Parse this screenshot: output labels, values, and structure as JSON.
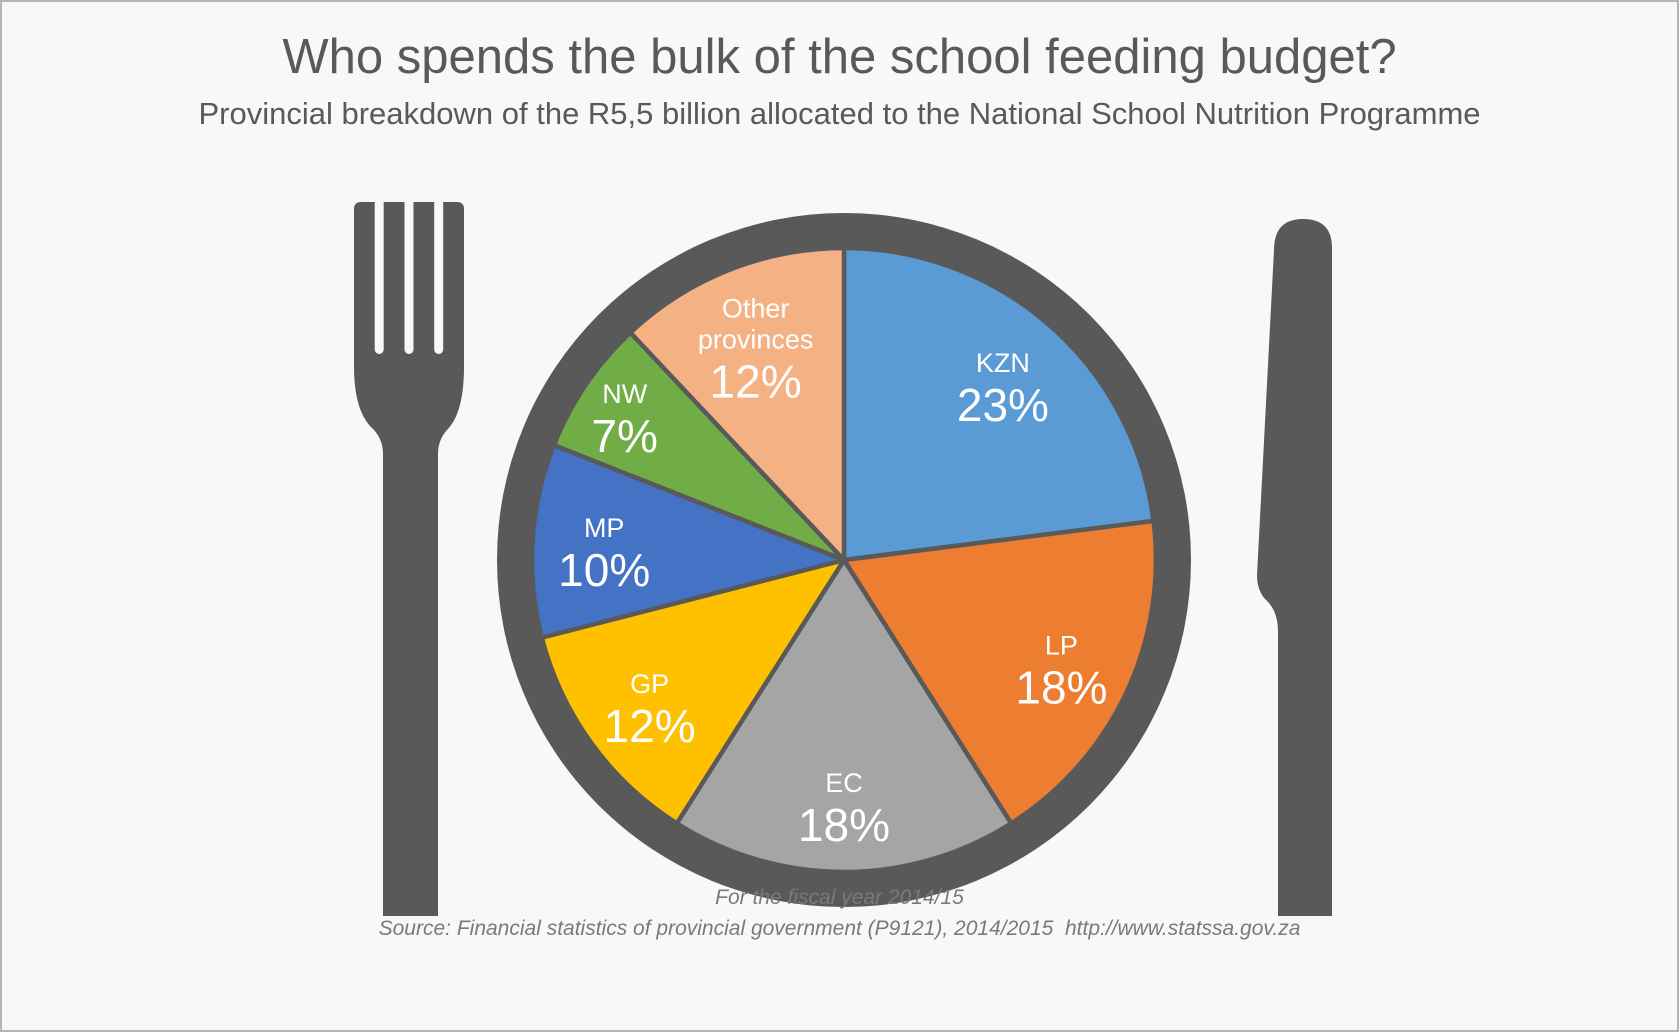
{
  "title": "Who spends the bulk of the school feeding budget?",
  "subtitle": "Provincial breakdown of the R5,5 billion allocated to the National School Nutrition Programme",
  "footer": {
    "line1": "For the fiscal year 2014/15",
    "line2": "Source: Financial statistics of provincial government (P9121), 2014/2015  http://www.statssa.gov.za"
  },
  "colors": {
    "utensil": "#595959",
    "slice_border": "#595959",
    "label_text": "#FFFFFF",
    "title_text": "#595959",
    "footer_text": "#7A7A7A",
    "background": "#F8F8F8",
    "border": "#B5B5B5"
  },
  "chart_data": {
    "type": "pie",
    "title": "Provincial breakdown of the R5,5 billion National School Nutrition Programme budget",
    "period": "Fiscal year 2014/15",
    "unit": "percent",
    "start_angle_deg": 0,
    "direction": "clockwise",
    "slices": [
      {
        "label": "KZN",
        "value": 23,
        "color": "#5B9BD5"
      },
      {
        "label": "LP",
        "value": 18,
        "color": "#ED7D31"
      },
      {
        "label": "EC",
        "value": 18,
        "color": "#A5A5A5"
      },
      {
        "label": "GP",
        "value": 12,
        "color": "#FFC000"
      },
      {
        "label": "MP",
        "value": 10,
        "color": "#4472C4"
      },
      {
        "label": "NW",
        "value": 7,
        "color": "#70AD47"
      },
      {
        "label": "Other provinces",
        "value": 12,
        "color": "#F4B183"
      }
    ]
  }
}
